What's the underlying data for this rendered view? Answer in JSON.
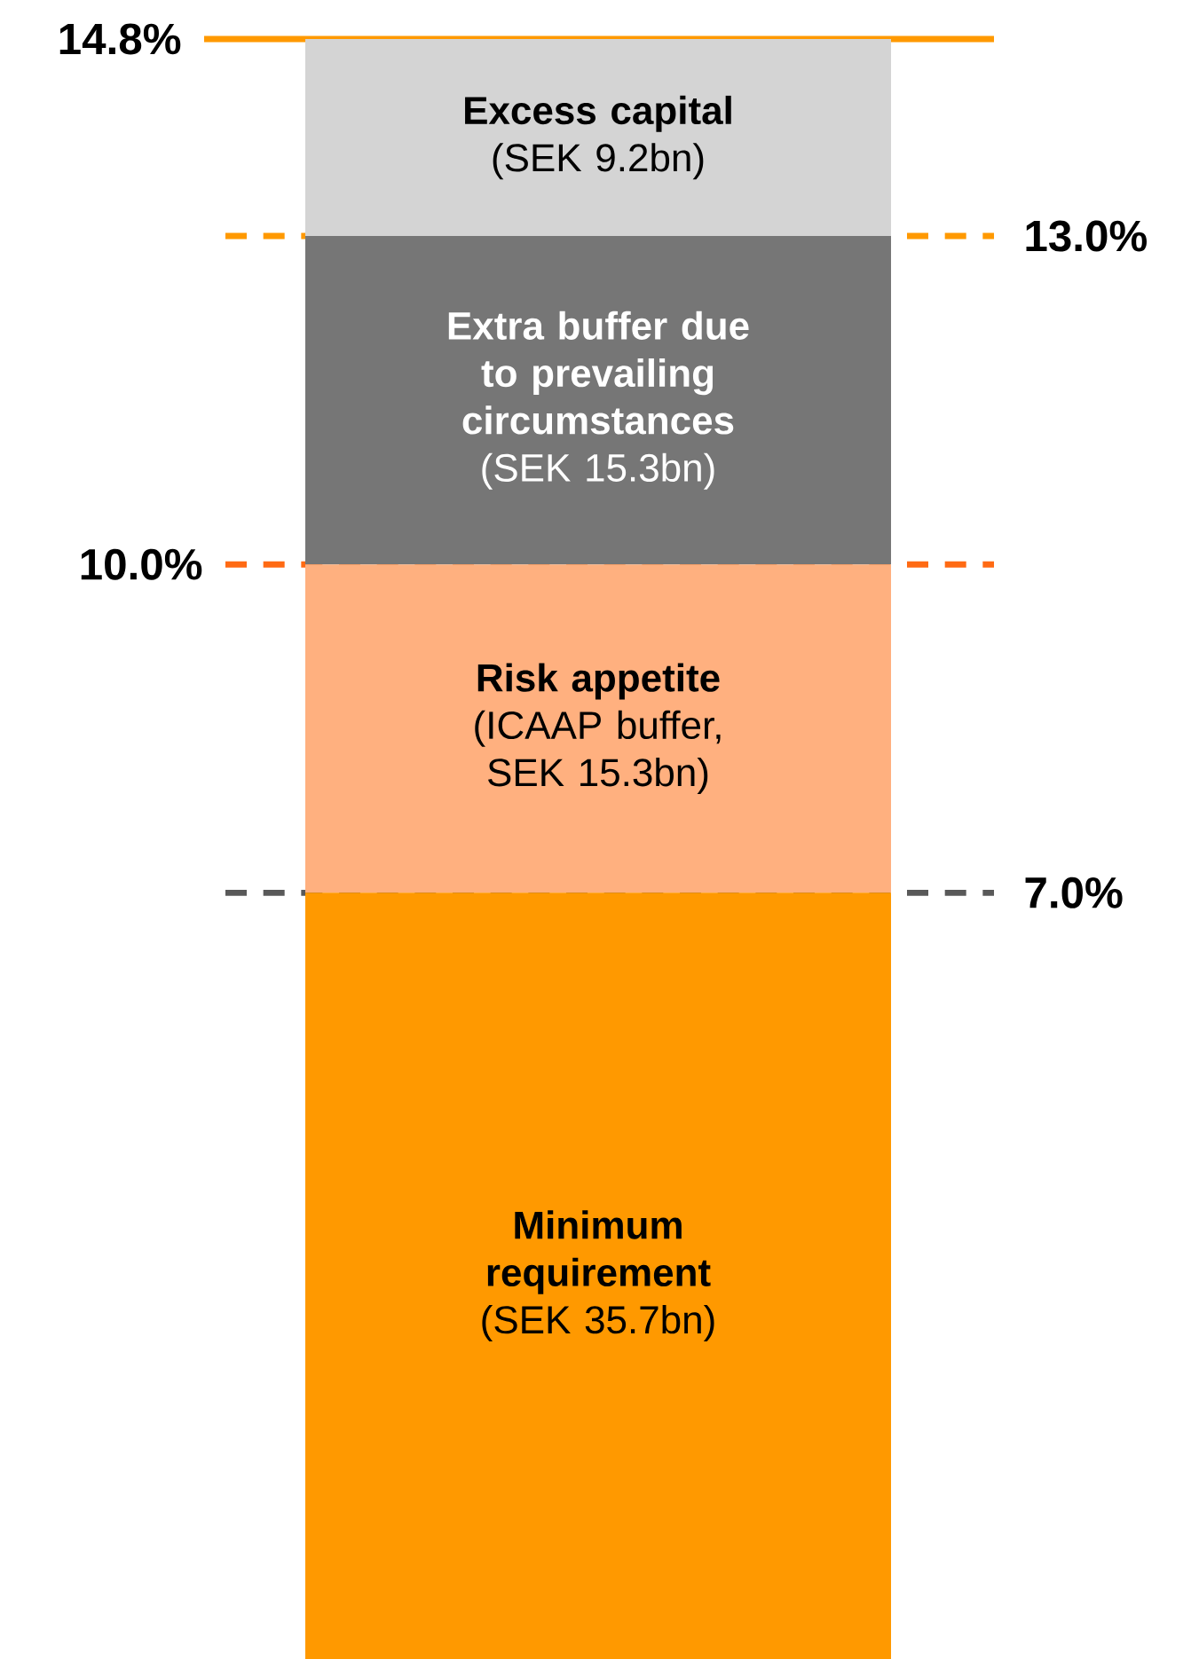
{
  "chart_data": {
    "type": "bar",
    "stacked": true,
    "categories": [
      null
    ],
    "series": [
      {
        "name": "Minimum requirement",
        "color": "#ff9900",
        "values": [
          7.0
        ]
      },
      {
        "name": "Risk appetite",
        "color": "#ffb07f",
        "values": [
          3.0
        ]
      },
      {
        "name": "Extra buffer due to prevailing circumstances",
        "color": "#767676",
        "values": [
          3.0
        ]
      },
      {
        "name": "Excess capital",
        "color": "#d4d4d4",
        "values": [
          1.8
        ]
      }
    ],
    "annotations": [
      "(SEK 35.7bn)",
      "(ICAAP buffer, SEK 15.3bn)",
      "(SEK  15.3bn)",
      "(SEK 9.2bn)"
    ],
    "ylim": [
      0,
      14.8
    ],
    "legend": false,
    "ref_lines": [
      {
        "axis": "y",
        "value": 14.8,
        "label": "14.8%",
        "color": "#ff9900",
        "line_style": "solid"
      },
      {
        "axis": "y",
        "value": 13.0,
        "label": "13.0%",
        "color": "#ff9900",
        "line_style": "dashed"
      },
      {
        "axis": "y",
        "value": 10.0,
        "label": "10.0%",
        "color": "#ff6a13",
        "line_style": "dashed"
      },
      {
        "axis": "y",
        "value": 7.0,
        "label": "7.0%",
        "color": "#595959",
        "line_style": "dashed"
      }
    ]
  }
}
